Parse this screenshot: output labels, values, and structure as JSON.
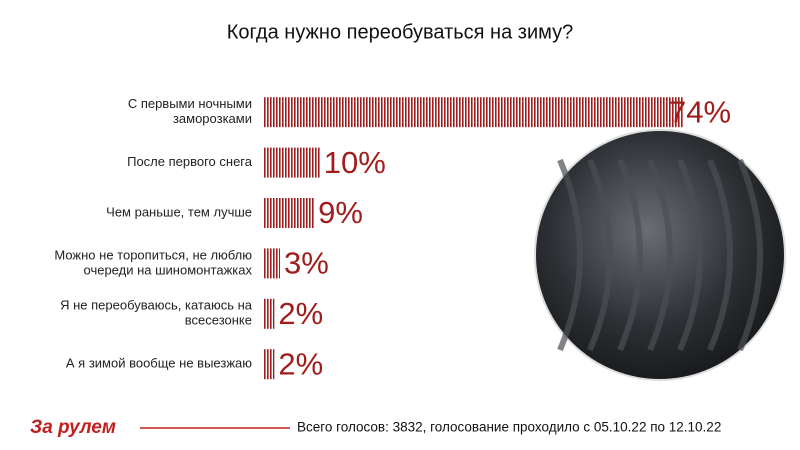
{
  "chart_data": {
    "type": "bar",
    "orientation": "horizontal",
    "title": "Когда нужно переобуваться на зиму?",
    "categories": [
      [
        "С первыми ночными",
        "заморозками"
      ],
      [
        "После первого снега"
      ],
      [
        "Чем раньше, тем лучше"
      ],
      [
        "Можно не торопиться, не люблю",
        "очереди на шиномонтажках"
      ],
      [
        "Я не переобуваюсь, катаюсь на",
        "всесезонке"
      ],
      [
        "А я зимой вообще не выезжаю"
      ]
    ],
    "values": [
      74,
      10,
      9,
      3,
      2,
      2
    ],
    "value_labels": [
      "74%",
      "10%",
      "9%",
      "3%",
      "2%",
      "2%"
    ],
    "color": "#a11d1d"
  },
  "footer": {
    "logo": "За рулем",
    "note": "Всего голосов: 3832, голосование проходило с 05.10.22 по 12.10.22"
  }
}
